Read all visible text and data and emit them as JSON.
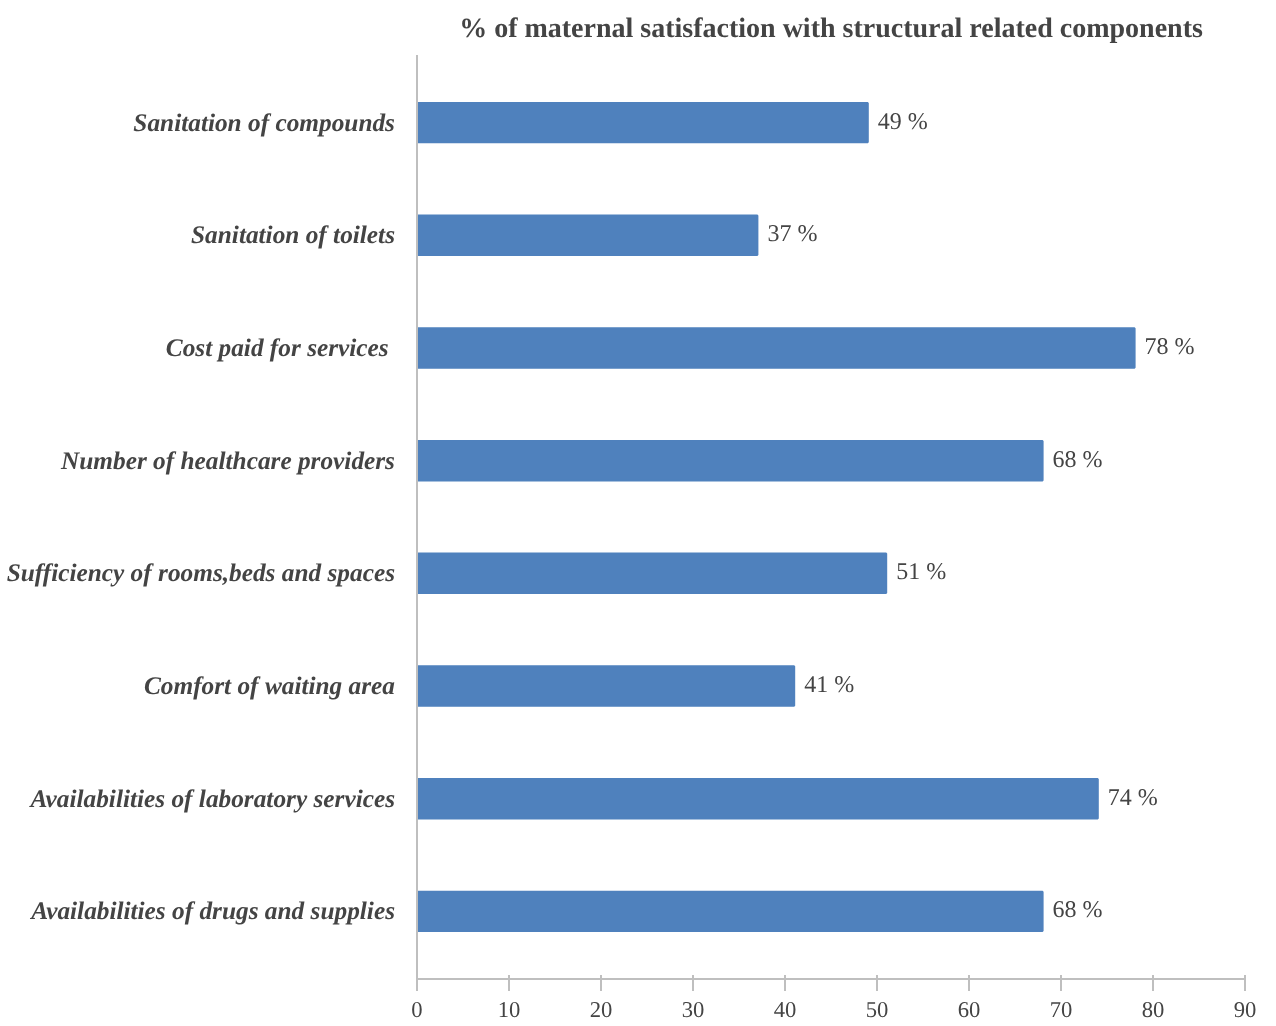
{
  "chart_data": {
    "type": "bar",
    "orientation": "horizontal",
    "title": "% of maternal satisfaction with structural related components",
    "categories": [
      "Sanitation of compounds",
      "Sanitation of toilets",
      "Cost paid for  services",
      "Number of healthcare providers",
      "Sufficiency of rooms,beds and spaces",
      "Comfort of waiting area",
      "Availabilities of laboratory services",
      "Availabilities of drugs and supplies"
    ],
    "values": [
      49,
      37,
      78,
      68,
      51,
      41,
      74,
      68
    ],
    "value_labels": [
      "49 %",
      "37 %",
      "78 %",
      "68 %",
      "51 %",
      "41 %",
      "74 %",
      "68 %"
    ],
    "color": "#4f81bd",
    "xlim": [
      0,
      90
    ],
    "xticks": [
      0,
      10,
      20,
      30,
      40,
      50,
      60,
      70,
      80,
      90
    ],
    "grid": false
  }
}
